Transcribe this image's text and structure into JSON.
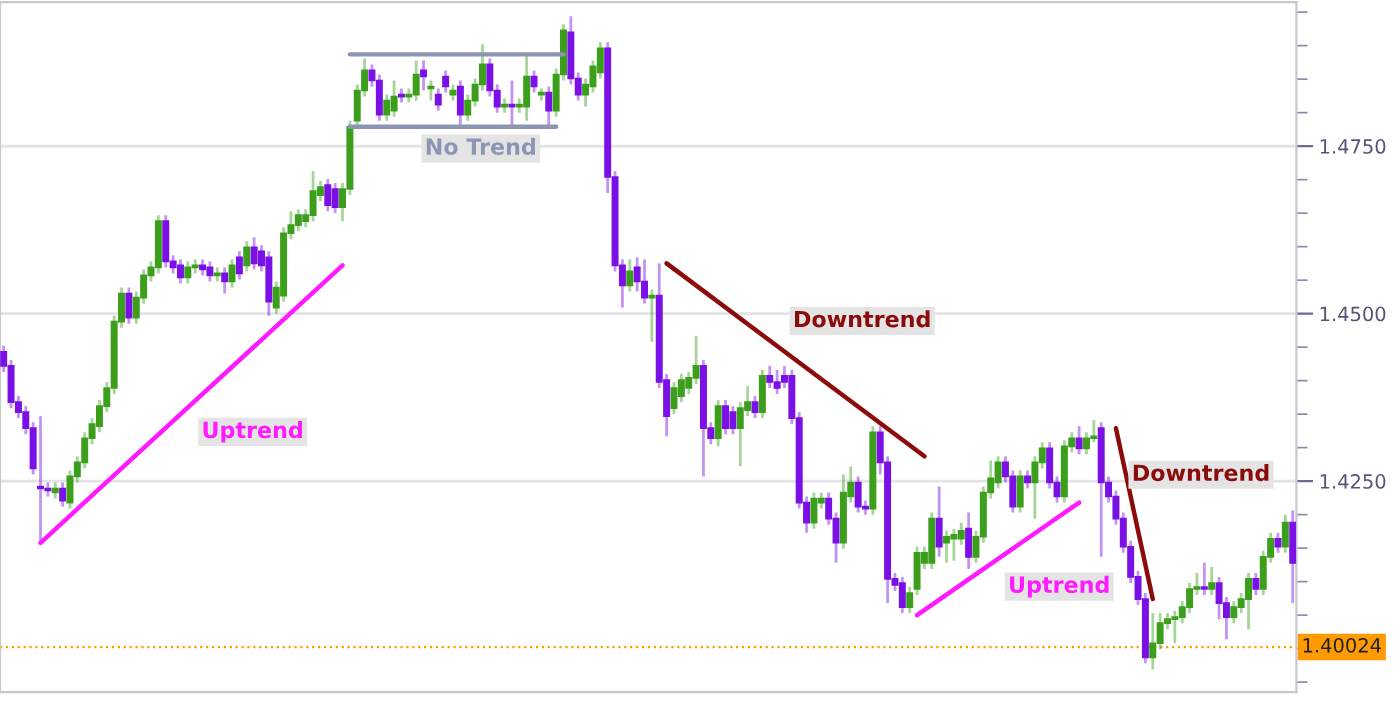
{
  "chart_data": {
    "type": "candlestick",
    "categories": [
      null,
      null,
      null,
      null,
      null,
      null,
      null,
      null,
      null,
      null,
      null,
      null,
      null,
      null,
      null,
      null,
      null,
      null,
      null,
      null,
      null,
      null,
      null,
      null,
      null,
      null,
      null,
      null,
      null,
      null,
      null,
      null,
      null,
      null,
      null,
      null,
      null,
      null,
      null,
      null,
      null,
      null,
      null,
      null,
      null,
      null,
      null,
      null,
      null,
      null,
      null,
      null,
      null,
      null,
      null,
      null,
      null,
      null,
      null,
      null,
      null,
      null,
      null,
      null,
      null,
      null,
      null,
      null,
      null,
      null,
      null,
      null,
      null,
      null,
      null,
      null,
      null,
      null,
      null,
      null,
      null,
      null,
      null,
      null,
      null,
      null,
      null,
      null,
      null,
      null,
      null,
      null,
      null,
      null,
      null,
      null,
      null,
      null,
      null,
      null,
      null,
      null,
      null,
      null,
      null,
      null,
      null,
      null,
      null,
      null,
      null,
      null,
      null,
      null,
      null,
      null,
      null,
      null,
      null,
      null,
      null,
      null,
      null,
      null,
      null,
      null,
      null,
      null,
      null,
      null,
      null,
      null,
      null,
      null,
      null,
      null,
      null,
      null,
      null,
      null,
      null,
      null,
      null,
      null,
      null,
      null,
      null,
      null,
      null,
      null,
      null,
      null,
      null,
      null,
      null,
      null,
      null,
      null,
      null,
      null,
      null,
      null,
      null,
      null,
      null,
      null,
      null,
      null,
      null,
      null,
      null,
      null,
      null,
      null,
      null,
      null
    ],
    "ohlc": [
      [
        1.4443,
        1.4452,
        1.4413,
        1.4422
      ],
      [
        1.4422,
        1.4431,
        1.4359,
        1.4368
      ],
      [
        1.4368,
        1.4377,
        1.4344,
        1.4353
      ],
      [
        1.4353,
        1.4362,
        1.432,
        1.4329
      ],
      [
        1.4329,
        1.4338,
        1.426,
        1.4269
      ],
      [
        1.4242,
        1.4347,
        1.4158,
        1.4239
      ],
      [
        1.4239,
        1.4248,
        1.4227,
        1.4236
      ],
      [
        1.4233,
        1.4248,
        1.4224,
        1.4239
      ],
      [
        1.4239,
        1.4248,
        1.4212,
        1.4221
      ],
      [
        1.4218,
        1.4266,
        1.4209,
        1.4257
      ],
      [
        1.4257,
        1.4287,
        1.4248,
        1.4278
      ],
      [
        1.4278,
        1.4323,
        1.4269,
        1.4314
      ],
      [
        1.4314,
        1.4344,
        1.4305,
        1.4335
      ],
      [
        1.4332,
        1.4371,
        1.4323,
        1.4362
      ],
      [
        1.4362,
        1.4398,
        1.4353,
        1.4389
      ],
      [
        1.4389,
        1.4497,
        1.438,
        1.4488
      ],
      [
        1.4488,
        1.4539,
        1.4479,
        1.453
      ],
      [
        1.453,
        1.4539,
        1.4485,
        1.4494
      ],
      [
        1.4494,
        1.4533,
        1.4485,
        1.4524
      ],
      [
        1.4524,
        1.4566,
        1.4515,
        1.4557
      ],
      [
        1.4557,
        1.4578,
        1.4548,
        1.4569
      ],
      [
        1.4569,
        1.4647,
        1.456,
        1.4638
      ],
      [
        1.4638,
        1.4647,
        1.4569,
        1.4578
      ],
      [
        1.4578,
        1.4587,
        1.456,
        1.4569
      ],
      [
        1.4572,
        1.4581,
        1.4545,
        1.4554
      ],
      [
        1.4554,
        1.4578,
        1.4545,
        1.4569
      ],
      [
        1.4569,
        1.4581,
        1.456,
        1.4572
      ],
      [
        1.4572,
        1.4581,
        1.4557,
        1.4566
      ],
      [
        1.4569,
        1.4578,
        1.4548,
        1.4557
      ],
      [
        1.4557,
        1.4569,
        1.4548,
        1.456
      ],
      [
        1.456,
        1.4569,
        1.453,
        1.4548
      ],
      [
        1.4548,
        1.4581,
        1.4539,
        1.4572
      ],
      [
        1.4584,
        1.4593,
        1.4551,
        1.456
      ],
      [
        1.4572,
        1.4608,
        1.4563,
        1.4599
      ],
      [
        1.4599,
        1.4614,
        1.4566,
        1.4575
      ],
      [
        1.4593,
        1.4602,
        1.4563,
        1.4572
      ],
      [
        1.4584,
        1.4593,
        1.4497,
        1.4518
      ],
      [
        1.4509,
        1.4548,
        1.45,
        1.4539
      ],
      [
        1.4527,
        1.4629,
        1.4518,
        1.462
      ],
      [
        1.462,
        1.4653,
        1.4611,
        1.4632
      ],
      [
        1.4632,
        1.4656,
        1.4623,
        1.4647
      ],
      [
        1.4638,
        1.4656,
        1.4629,
        1.4647
      ],
      [
        1.4647,
        1.4713,
        1.4638,
        1.4683
      ],
      [
        1.4677,
        1.4698,
        1.4668,
        1.4689
      ],
      [
        1.4692,
        1.4701,
        1.4653,
        1.4662
      ],
      [
        1.4686,
        1.4695,
        1.465,
        1.4659
      ],
      [
        1.4659,
        1.4695,
        1.4638,
        1.4686
      ],
      [
        1.4686,
        1.4788,
        1.4677,
        1.4779
      ],
      [
        1.4788,
        1.4842,
        1.4779,
        1.4833
      ],
      [
        1.4833,
        1.4881,
        1.4824,
        1.4863
      ],
      [
        1.4863,
        1.4872,
        1.4839,
        1.4848
      ],
      [
        1.4848,
        1.4857,
        1.4788,
        1.4797
      ],
      [
        1.4797,
        1.4827,
        1.4788,
        1.4818
      ],
      [
        1.4803,
        1.4848,
        1.4794,
        1.4824
      ],
      [
        1.4827,
        1.4836,
        1.4815,
        1.4824
      ],
      [
        1.4824,
        1.4836,
        1.4815,
        1.4827
      ],
      [
        1.4827,
        1.4878,
        1.4818,
        1.4857
      ],
      [
        1.4863,
        1.4878,
        1.4833,
        1.4854
      ],
      [
        1.4836,
        1.4848,
        1.4818,
        1.4839
      ],
      [
        1.4827,
        1.4836,
        1.4803,
        1.4812
      ],
      [
        1.4854,
        1.4863,
        1.483,
        1.4839
      ],
      [
        1.4827,
        1.4842,
        1.4818,
        1.4833
      ],
      [
        1.4839,
        1.4848,
        1.4779,
        1.4797
      ],
      [
        1.4797,
        1.4827,
        1.4788,
        1.4818
      ],
      [
        1.4818,
        1.4851,
        1.4809,
        1.4842
      ],
      [
        1.4842,
        1.4902,
        1.4833,
        1.4872
      ],
      [
        1.4872,
        1.4881,
        1.4824,
        1.4833
      ],
      [
        1.4833,
        1.4842,
        1.48,
        1.4809
      ],
      [
        1.4809,
        1.4821,
        1.48,
        1.4812
      ],
      [
        1.4812,
        1.4848,
        1.4779,
        1.4809
      ],
      [
        1.4809,
        1.4821,
        1.48,
        1.4812
      ],
      [
        1.4809,
        1.4887,
        1.4788,
        1.4854
      ],
      [
        1.4854,
        1.4863,
        1.483,
        1.4839
      ],
      [
        1.4827,
        1.4836,
        1.4818,
        1.483
      ],
      [
        1.483,
        1.4839,
        1.4779,
        1.4803
      ],
      [
        1.4803,
        1.4866,
        1.4794,
        1.4857
      ],
      [
        1.4857,
        1.4932,
        1.4848,
        1.4923
      ],
      [
        1.492,
        1.4944,
        1.4842,
        1.4851
      ],
      [
        1.4851,
        1.486,
        1.4818,
        1.4827
      ],
      [
        1.4827,
        1.4851,
        1.4809,
        1.4842
      ],
      [
        1.4839,
        1.4878,
        1.483,
        1.4869
      ],
      [
        1.486,
        1.4905,
        1.4851,
        1.4896
      ],
      [
        1.4896,
        1.4905,
        1.468,
        1.4704
      ],
      [
        1.4704,
        1.4713,
        1.4563,
        1.4572
      ],
      [
        1.4572,
        1.4581,
        1.4509,
        1.4542
      ],
      [
        1.4542,
        1.4581,
        1.4533,
        1.4563
      ],
      [
        1.4569,
        1.4584,
        1.4533,
        1.4548
      ],
      [
        1.4548,
        1.4581,
        1.4515,
        1.4524
      ],
      [
        1.4524,
        1.4536,
        1.4458,
        1.4527
      ],
      [
        1.4527,
        1.4575,
        1.4389,
        1.4398
      ],
      [
        1.4401,
        1.441,
        1.4317,
        1.4347
      ],
      [
        1.4359,
        1.4398,
        1.435,
        1.4389
      ],
      [
        1.4377,
        1.441,
        1.4368,
        1.4401
      ],
      [
        1.4389,
        1.4413,
        1.438,
        1.4404
      ],
      [
        1.4404,
        1.4467,
        1.4395,
        1.4422
      ],
      [
        1.4422,
        1.4431,
        1.4257,
        1.4329
      ],
      [
        1.4329,
        1.4338,
        1.4305,
        1.4314
      ],
      [
        1.4314,
        1.4371,
        1.4302,
        1.4362
      ],
      [
        1.4362,
        1.4371,
        1.432,
        1.4329
      ],
      [
        1.4353,
        1.4362,
        1.432,
        1.4329
      ],
      [
        1.4329,
        1.4368,
        1.4272,
        1.4359
      ],
      [
        1.4356,
        1.4392,
        1.4347,
        1.4368
      ],
      [
        1.4368,
        1.4377,
        1.4344,
        1.4353
      ],
      [
        1.4353,
        1.4416,
        1.4344,
        1.4407
      ],
      [
        1.4407,
        1.4422,
        1.4389,
        1.4398
      ],
      [
        1.4398,
        1.4416,
        1.438,
        1.4389
      ],
      [
        1.4407,
        1.4422,
        1.4389,
        1.4398
      ],
      [
        1.4407,
        1.4416,
        1.4335,
        1.4344
      ],
      [
        1.4344,
        1.4353,
        1.4209,
        1.4218
      ],
      [
        1.4218,
        1.4227,
        1.4173,
        1.4188
      ],
      [
        1.4188,
        1.4233,
        1.4179,
        1.4224
      ],
      [
        1.4218,
        1.4233,
        1.4209,
        1.4224
      ],
      [
        1.4224,
        1.4233,
        1.4185,
        1.4194
      ],
      [
        1.4194,
        1.4203,
        1.4128,
        1.4158
      ],
      [
        1.4158,
        1.426,
        1.4149,
        1.4233
      ],
      [
        1.4227,
        1.4272,
        1.4218,
        1.4248
      ],
      [
        1.4248,
        1.4257,
        1.4203,
        1.4212
      ],
      [
        1.4212,
        1.4221,
        1.42,
        1.4209
      ],
      [
        1.4209,
        1.4332,
        1.42,
        1.4323
      ],
      [
        1.4323,
        1.4332,
        1.426,
        1.4278
      ],
      [
        1.4278,
        1.4287,
        1.4068,
        1.4104
      ],
      [
        1.4104,
        1.4113,
        1.4086,
        1.4095
      ],
      [
        1.4098,
        1.4107,
        1.4053,
        1.4062
      ],
      [
        1.4062,
        1.4092,
        1.4053,
        1.4083
      ],
      [
        1.4089,
        1.4152,
        1.408,
        1.4143
      ],
      [
        1.4128,
        1.4152,
        1.4119,
        1.4143
      ],
      [
        1.4128,
        1.4203,
        1.4119,
        1.4194
      ],
      [
        1.4194,
        1.4242,
        1.4137,
        1.4152
      ],
      [
        1.4158,
        1.4176,
        1.4128,
        1.4167
      ],
      [
        1.4164,
        1.4179,
        1.4131,
        1.417
      ],
      [
        1.4164,
        1.4188,
        1.4155,
        1.4176
      ],
      [
        1.4179,
        1.4203,
        1.4119,
        1.4137
      ],
      [
        1.4137,
        1.4176,
        1.4128,
        1.4167
      ],
      [
        1.4167,
        1.4242,
        1.4158,
        1.4233
      ],
      [
        1.4233,
        1.4281,
        1.4224,
        1.4254
      ],
      [
        1.4248,
        1.4287,
        1.4239,
        1.4278
      ],
      [
        1.4278,
        1.4287,
        1.4248,
        1.4257
      ],
      [
        1.4257,
        1.4266,
        1.4203,
        1.4212
      ],
      [
        1.4212,
        1.4266,
        1.4203,
        1.4257
      ],
      [
        1.4257,
        1.4266,
        1.4239,
        1.4248
      ],
      [
        1.4248,
        1.4287,
        1.4194,
        1.4278
      ],
      [
        1.4278,
        1.4308,
        1.4269,
        1.4299
      ],
      [
        1.4299,
        1.4308,
        1.4239,
        1.4248
      ],
      [
        1.4248,
        1.4257,
        1.4218,
        1.4227
      ],
      [
        1.4227,
        1.4311,
        1.4218,
        1.4302
      ],
      [
        1.4302,
        1.4323,
        1.4293,
        1.4314
      ],
      [
        1.4314,
        1.4332,
        1.429,
        1.4299
      ],
      [
        1.4299,
        1.4323,
        1.429,
        1.4314
      ],
      [
        1.4314,
        1.4341,
        1.4308,
        1.4317
      ],
      [
        1.4329,
        1.4338,
        1.4137,
        1.4248
      ],
      [
        1.4248,
        1.4257,
        1.4218,
        1.4227
      ],
      [
        1.4227,
        1.4236,
        1.4185,
        1.4194
      ],
      [
        1.4194,
        1.4203,
        1.4143,
        1.4152
      ],
      [
        1.4152,
        1.4161,
        1.4098,
        1.4107
      ],
      [
        1.4107,
        1.4116,
        1.4065,
        1.4074
      ],
      [
        1.4074,
        1.4083,
        1.3978,
        1.3987
      ],
      [
        1.3987,
        1.4053,
        1.3969,
        1.4008
      ],
      [
        1.4008,
        1.4053,
        1.3999,
        1.4038
      ],
      [
        1.4038,
        1.4053,
        1.4029,
        1.4044
      ],
      [
        1.4044,
        1.4056,
        1.4008,
        1.4047
      ],
      [
        1.4047,
        1.4071,
        1.4038,
        1.4062
      ],
      [
        1.4062,
        1.4098,
        1.4053,
        1.4089
      ],
      [
        1.4089,
        1.4113,
        1.408,
        1.4092
      ],
      [
        1.4092,
        1.4128,
        1.408,
        1.4089
      ],
      [
        1.4089,
        1.4122,
        1.408,
        1.4098
      ],
      [
        1.4098,
        1.4107,
        1.4044,
        1.4068
      ],
      [
        1.4068,
        1.4077,
        1.4014,
        1.4047
      ],
      [
        1.4047,
        1.4071,
        1.4038,
        1.4062
      ],
      [
        1.4062,
        1.4083,
        1.4053,
        1.4074
      ],
      [
        1.4074,
        1.4113,
        1.4029,
        1.4104
      ],
      [
        1.4104,
        1.4113,
        1.408,
        1.4089
      ],
      [
        1.4089,
        1.4146,
        1.408,
        1.4137
      ],
      [
        1.4137,
        1.4173,
        1.4128,
        1.4164
      ],
      [
        1.4164,
        1.4173,
        1.4143,
        1.4152
      ],
      [
        1.4152,
        1.42,
        1.4143,
        1.4188
      ],
      [
        1.4188,
        1.4206,
        1.4068,
        1.4128
      ]
    ],
    "colors": [
      "#7a10e6",
      "#7a10e6",
      "#7a10e6",
      "#7a10e6",
      "#7a10e6",
      "#7a10e6",
      "#7a10e6",
      "#3c9f1c",
      "#7a10e6",
      "#3c9f1c",
      "#3c9f1c",
      "#3c9f1c",
      "#3c9f1c",
      "#3c9f1c",
      "#3c9f1c",
      "#3c9f1c",
      "#3c9f1c",
      "#7a10e6",
      "#3c9f1c",
      "#3c9f1c",
      "#3c9f1c",
      "#3c9f1c",
      "#7a10e6",
      "#7a10e6",
      "#7a10e6",
      "#3c9f1c",
      "#3c9f1c",
      "#7a10e6",
      "#7a10e6",
      "#3c9f1c",
      "#7a10e6",
      "#3c9f1c",
      "#7a10e6",
      "#3c9f1c",
      "#7a10e6",
      "#7a10e6",
      "#7a10e6",
      "#3c9f1c",
      "#3c9f1c",
      "#3c9f1c",
      "#3c9f1c",
      "#3c9f1c",
      "#3c9f1c",
      "#3c9f1c",
      "#7a10e6",
      "#7a10e6",
      "#3c9f1c",
      "#3c9f1c",
      "#3c9f1c",
      "#3c9f1c",
      "#7a10e6",
      "#7a10e6",
      "#3c9f1c",
      "#3c9f1c",
      "#7a10e6",
      "#3c9f1c",
      "#3c9f1c",
      "#7a10e6",
      "#3c9f1c",
      "#7a10e6",
      "#7a10e6",
      "#3c9f1c",
      "#7a10e6",
      "#3c9f1c",
      "#3c9f1c",
      "#3c9f1c",
      "#7a10e6",
      "#7a10e6",
      "#3c9f1c",
      "#7a10e6",
      "#3c9f1c",
      "#3c9f1c",
      "#7a10e6",
      "#3c9f1c",
      "#7a10e6",
      "#3c9f1c",
      "#3c9f1c",
      "#7a10e6",
      "#7a10e6",
      "#3c9f1c",
      "#3c9f1c",
      "#3c9f1c",
      "#7a10e6",
      "#7a10e6",
      "#7a10e6",
      "#3c9f1c",
      "#7a10e6",
      "#7a10e6",
      "#3c9f1c",
      "#7a10e6",
      "#7a10e6",
      "#3c9f1c",
      "#3c9f1c",
      "#3c9f1c",
      "#3c9f1c",
      "#7a10e6",
      "#7a10e6",
      "#3c9f1c",
      "#7a10e6",
      "#7a10e6",
      "#3c9f1c",
      "#3c9f1c",
      "#7a10e6",
      "#3c9f1c",
      "#7a10e6",
      "#7a10e6",
      "#7a10e6",
      "#7a10e6",
      "#7a10e6",
      "#7a10e6",
      "#3c9f1c",
      "#3c9f1c",
      "#7a10e6",
      "#7a10e6",
      "#3c9f1c",
      "#3c9f1c",
      "#7a10e6",
      "#7a10e6",
      "#3c9f1c",
      "#7a10e6",
      "#7a10e6",
      "#7a10e6",
      "#7a10e6",
      "#3c9f1c",
      "#3c9f1c",
      "#3c9f1c",
      "#3c9f1c",
      "#7a10e6",
      "#3c9f1c",
      "#3c9f1c",
      "#3c9f1c",
      "#7a10e6",
      "#3c9f1c",
      "#3c9f1c",
      "#3c9f1c",
      "#3c9f1c",
      "#7a10e6",
      "#7a10e6",
      "#3c9f1c",
      "#7a10e6",
      "#3c9f1c",
      "#3c9f1c",
      "#7a10e6",
      "#7a10e6",
      "#3c9f1c",
      "#3c9f1c",
      "#7a10e6",
      "#3c9f1c",
      "#3c9f1c",
      "#7a10e6",
      "#7a10e6",
      "#7a10e6",
      "#7a10e6",
      "#7a10e6",
      "#7a10e6",
      "#7a10e6",
      "#3c9f1c",
      "#3c9f1c",
      "#3c9f1c",
      "#3c9f1c",
      "#3c9f1c",
      "#3c9f1c",
      "#3c9f1c",
      "#7a10e6",
      "#3c9f1c",
      "#7a10e6",
      "#7a10e6",
      "#3c9f1c",
      "#3c9f1c",
      "#3c9f1c",
      "#7a10e6",
      "#3c9f1c",
      "#3c9f1c",
      "#7a10e6",
      "#3c9f1c",
      "#7a10e6"
    ],
    "series": [
      {
        "type": "line",
        "name": "Uptrend",
        "color": "#ff1aff",
        "values": [
          null,
          null,
          null,
          null,
          null,
          1.4158,
          null,
          null,
          null,
          null,
          null,
          null,
          null,
          null,
          null,
          null,
          null,
          null,
          null,
          null,
          null,
          null,
          null,
          null,
          null,
          null,
          null,
          null,
          null,
          null,
          null,
          null,
          null,
          null,
          null,
          null,
          null,
          null,
          null,
          null,
          null,
          null,
          null,
          null,
          null,
          null,
          1.4572,
          null,
          null,
          null,
          null,
          null,
          null,
          null,
          null,
          null,
          null,
          null,
          null,
          null,
          null,
          null,
          null,
          null,
          null,
          null,
          null,
          null,
          null,
          null,
          null,
          null,
          null,
          null,
          null,
          null,
          null,
          null,
          null,
          null,
          null,
          null,
          null,
          null,
          null,
          null,
          null,
          null,
          null,
          null,
          null,
          null,
          null,
          null,
          null,
          null,
          null,
          null,
          null,
          null,
          null,
          null,
          null,
          null,
          null,
          null,
          null,
          null,
          null,
          null,
          null,
          null,
          null,
          null,
          null,
          null,
          null,
          null,
          null,
          null,
          null,
          null,
          null,
          null,
          null,
          null,
          null,
          null,
          null,
          null,
          null,
          null,
          null,
          null,
          null,
          null,
          null,
          null,
          null,
          null,
          null,
          null,
          null,
          null,
          null,
          null,
          null,
          null,
          null,
          null,
          null,
          null,
          null,
          null,
          null,
          null,
          null,
          null,
          null,
          null,
          null,
          null,
          null,
          null,
          null,
          null,
          null,
          null,
          null,
          null,
          null,
          null,
          null,
          null,
          null,
          null
        ]
      },
      {
        "type": "line",
        "name": "Downtrend",
        "color": "#8b0a0a",
        "values": [
          null,
          null,
          null,
          null,
          null,
          null,
          null,
          null,
          null,
          null,
          null,
          null,
          null,
          null,
          null,
          null,
          null,
          null,
          null,
          null,
          null,
          null,
          null,
          null,
          null,
          null,
          null,
          null,
          null,
          null,
          null,
          null,
          null,
          null,
          null,
          null,
          null,
          null,
          null,
          null,
          null,
          null,
          null,
          null,
          null,
          null,
          null,
          null,
          null,
          null,
          null,
          null,
          null,
          null,
          null,
          null,
          null,
          null,
          null,
          null,
          null,
          null,
          null,
          null,
          null,
          null,
          null,
          null,
          null,
          null,
          null,
          null,
          null,
          null,
          null,
          null,
          null,
          null,
          null,
          null,
          null,
          null,
          null,
          null,
          null,
          null,
          null,
          null,
          null,
          null,
          1.4575,
          null,
          null,
          null,
          null,
          null,
          null,
          null,
          null,
          null,
          null,
          null,
          null,
          null,
          null,
          null,
          null,
          null,
          null,
          null,
          null,
          null,
          null,
          null,
          null,
          null,
          null,
          null,
          null,
          null,
          null,
          null,
          null,
          null,
          null,
          1.4287,
          null,
          null,
          null,
          null,
          null,
          null,
          null,
          null,
          null,
          null,
          null,
          null,
          null,
          null,
          null,
          null,
          null,
          null,
          null,
          null,
          null,
          null,
          null,
          null,
          null,
          null,
          null,
          null,
          null,
          null,
          null,
          null,
          null,
          null,
          null,
          null,
          null,
          null,
          null,
          null,
          null,
          null,
          null,
          null,
          null,
          null,
          null,
          null,
          null,
          null
        ]
      },
      {
        "type": "line",
        "name": "Uptrend",
        "color": "#ff1aff",
        "values": [
          null,
          null,
          null,
          null,
          null,
          null,
          null,
          null,
          null,
          null,
          null,
          null,
          null,
          null,
          null,
          null,
          null,
          null,
          null,
          null,
          null,
          null,
          null,
          null,
          null,
          null,
          null,
          null,
          null,
          null,
          null,
          null,
          null,
          null,
          null,
          null,
          null,
          null,
          null,
          null,
          null,
          null,
          null,
          null,
          null,
          null,
          null,
          null,
          null,
          null,
          null,
          null,
          null,
          null,
          null,
          null,
          null,
          null,
          null,
          null,
          null,
          null,
          null,
          null,
          null,
          null,
          null,
          null,
          null,
          null,
          null,
          null,
          null,
          null,
          null,
          null,
          null,
          null,
          null,
          null,
          null,
          null,
          null,
          null,
          null,
          null,
          null,
          null,
          null,
          null,
          null,
          null,
          null,
          null,
          null,
          null,
          null,
          null,
          null,
          null,
          null,
          null,
          null,
          null,
          null,
          null,
          null,
          null,
          null,
          null,
          null,
          null,
          null,
          null,
          null,
          null,
          null,
          null,
          null,
          null,
          null,
          null,
          null,
          null,
          1.405,
          null,
          null,
          null,
          null,
          null,
          null,
          null,
          null,
          null,
          null,
          null,
          null,
          null,
          null,
          null,
          null,
          null,
          null,
          null,
          null,
          null,
          1.4218,
          null,
          null,
          null,
          null,
          null,
          null,
          null,
          null,
          null,
          null,
          null,
          null,
          null,
          null,
          null,
          null,
          null,
          null,
          null,
          null,
          null,
          null,
          null,
          null,
          null,
          null,
          null,
          null,
          null
        ]
      },
      {
        "type": "line",
        "name": "Downtrend",
        "color": "#8b0a0a",
        "values": [
          null,
          null,
          null,
          null,
          null,
          null,
          null,
          null,
          null,
          null,
          null,
          null,
          null,
          null,
          null,
          null,
          null,
          null,
          null,
          null,
          null,
          null,
          null,
          null,
          null,
          null,
          null,
          null,
          null,
          null,
          null,
          null,
          null,
          null,
          null,
          null,
          null,
          null,
          null,
          null,
          null,
          null,
          null,
          null,
          null,
          null,
          null,
          null,
          null,
          null,
          null,
          null,
          null,
          null,
          null,
          null,
          null,
          null,
          null,
          null,
          null,
          null,
          null,
          null,
          null,
          null,
          null,
          null,
          null,
          null,
          null,
          null,
          null,
          null,
          null,
          null,
          null,
          null,
          null,
          null,
          null,
          null,
          null,
          null,
          null,
          null,
          null,
          null,
          null,
          null,
          null,
          null,
          null,
          null,
          null,
          null,
          null,
          null,
          null,
          null,
          null,
          null,
          null,
          null,
          null,
          null,
          null,
          null,
          null,
          null,
          null,
          null,
          null,
          null,
          null,
          null,
          null,
          null,
          null,
          null,
          null,
          null,
          null,
          null,
          null,
          null,
          null,
          null,
          null,
          null,
          null,
          null,
          null,
          null,
          null,
          null,
          null,
          null,
          null,
          null,
          null,
          null,
          null,
          null,
          null,
          null,
          null,
          null,
          null,
          null,
          null,
          1.4329,
          null,
          null,
          null,
          null,
          1.4074,
          null,
          null,
          null,
          null,
          null,
          null,
          null,
          null,
          null,
          null,
          null,
          null,
          null,
          null,
          null,
          null,
          null,
          null,
          null
        ]
      },
      {
        "type": "line",
        "name": "No Trend",
        "color": "#8c96b4",
        "values": [
          null,
          null,
          null,
          null,
          null,
          null,
          null,
          null,
          null,
          null,
          null,
          null,
          null,
          null,
          null,
          null,
          null,
          null,
          null,
          null,
          null,
          null,
          null,
          null,
          null,
          null,
          null,
          null,
          null,
          null,
          null,
          null,
          null,
          null,
          null,
          null,
          null,
          null,
          null,
          null,
          null,
          null,
          null,
          null,
          null,
          null,
          null,
          1.4779,
          null,
          null,
          null,
          null,
          null,
          null,
          null,
          null,
          null,
          null,
          null,
          null,
          null,
          null,
          null,
          null,
          null,
          null,
          null,
          null,
          null,
          null,
          null,
          null,
          null,
          null,
          null,
          1.4779,
          null,
          null,
          null,
          null,
          null,
          null,
          null,
          null,
          null,
          null,
          null,
          null,
          null,
          null,
          null,
          null,
          null,
          null,
          null,
          null,
          null,
          null,
          null,
          null,
          null,
          null,
          null,
          null,
          null,
          null,
          null,
          null,
          null,
          null,
          null,
          null,
          null,
          null,
          null,
          null,
          null,
          null,
          null,
          null,
          null,
          null,
          null,
          null,
          null,
          null,
          null,
          null,
          null,
          null,
          null,
          null,
          null,
          null,
          null,
          null,
          null,
          null,
          null,
          null,
          null,
          null,
          null,
          null,
          null,
          null,
          null,
          null,
          null,
          null,
          null,
          null,
          null,
          null,
          null,
          null,
          null,
          null,
          null,
          null,
          null,
          null,
          null,
          null,
          null,
          null,
          null,
          null,
          null,
          null,
          null,
          null,
          null,
          null,
          null,
          null
        ]
      },
      {
        "type": "line",
        "color": "#8c96b4",
        "values": [
          null,
          null,
          null,
          null,
          null,
          null,
          null,
          null,
          null,
          null,
          null,
          null,
          null,
          null,
          null,
          null,
          null,
          null,
          null,
          null,
          null,
          null,
          null,
          null,
          null,
          null,
          null,
          null,
          null,
          null,
          null,
          null,
          null,
          null,
          null,
          null,
          null,
          null,
          null,
          null,
          null,
          null,
          null,
          null,
          null,
          null,
          null,
          1.4887,
          null,
          null,
          null,
          null,
          null,
          null,
          null,
          null,
          null,
          null,
          null,
          null,
          null,
          null,
          null,
          null,
          null,
          null,
          null,
          null,
          null,
          null,
          null,
          null,
          null,
          null,
          null,
          null,
          1.4887,
          null,
          null,
          null,
          null,
          null,
          null,
          null,
          null,
          null,
          null,
          null,
          null,
          null,
          null,
          null,
          null,
          null,
          null,
          null,
          null,
          null,
          null,
          null,
          null,
          null,
          null,
          null,
          null,
          null,
          null,
          null,
          null,
          null,
          null,
          null,
          null,
          null,
          null,
          null,
          null,
          null,
          null,
          null,
          null,
          null,
          null,
          null,
          null,
          null,
          null,
          null,
          null,
          null,
          null,
          null,
          null,
          null,
          null,
          null,
          null,
          null,
          null,
          null,
          null,
          null,
          null,
          null,
          null,
          null,
          null,
          null,
          null,
          null,
          null,
          null,
          null,
          null,
          null,
          null,
          null,
          null,
          null,
          null,
          null,
          null,
          null,
          null,
          null,
          null,
          null,
          null,
          null,
          null,
          null,
          null,
          null,
          null,
          null,
          null
        ]
      }
    ],
    "ylim": [
      1.3935,
      1.4965
    ],
    "yticks": [
      {
        "value": 1.395,
        "label": null
      },
      {
        "value": 1.4,
        "label": null
      },
      {
        "value": 1.405,
        "label": null
      },
      {
        "value": 1.41,
        "label": null
      },
      {
        "value": 1.415,
        "label": null
      },
      {
        "value": 1.42,
        "label": null
      },
      {
        "value": 1.425,
        "label": "1.4250"
      },
      {
        "value": 1.43,
        "label": null
      },
      {
        "value": 1.435,
        "label": null
      },
      {
        "value": 1.44,
        "label": null
      },
      {
        "value": 1.445,
        "label": null
      },
      {
        "value": 1.45,
        "label": "1.4500"
      },
      {
        "value": 1.455,
        "label": null
      },
      {
        "value": 1.46,
        "label": null
      },
      {
        "value": 1.465,
        "label": null
      },
      {
        "value": 1.47,
        "label": null
      },
      {
        "value": 1.475,
        "label": "1.4750"
      },
      {
        "value": 1.48,
        "label": null
      },
      {
        "value": 1.485,
        "label": null
      },
      {
        "value": 1.49,
        "label": null
      },
      {
        "value": 1.495,
        "label": null
      }
    ],
    "ref_lines": [
      {
        "axis": "y",
        "value": 1.40024,
        "label": "1.40024",
        "color": "#ff9a00",
        "line_style": "dotted"
      }
    ],
    "grid": "y",
    "tick_labels": "y"
  }
}
